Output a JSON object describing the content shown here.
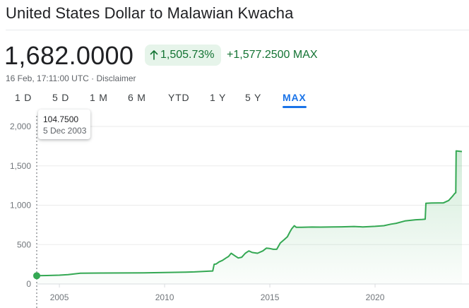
{
  "header": {
    "title": "United States Dollar to Malawian Kwacha"
  },
  "quote": {
    "price": "1,682.0000",
    "change_pct": "1,505.73%",
    "change_abs": "+1,577.2500",
    "change_period": "MAX",
    "timestamp": "16 Feb, 17:11:00 UTC",
    "separator": " · ",
    "disclaimer": "Disclaimer"
  },
  "colors": {
    "line": "#34a853",
    "positive_text": "#137333",
    "badge_bg": "#e6f4ea",
    "accent": "#1a73e8"
  },
  "tabs": [
    {
      "label": "1 D",
      "active": false
    },
    {
      "label": "5 D",
      "active": false
    },
    {
      "label": "1 M",
      "active": false
    },
    {
      "label": "6 M",
      "active": false
    },
    {
      "label": "YTD",
      "active": false
    },
    {
      "label": "1 Y",
      "active": false
    },
    {
      "label": "5 Y",
      "active": false
    },
    {
      "label": "MAX",
      "active": true
    }
  ],
  "tooltip": {
    "value": "104.7500",
    "date": "5 Dec 2003"
  },
  "chart_data": {
    "type": "area",
    "title": "",
    "xlabel": "",
    "ylabel": "",
    "ylim": [
      0,
      2000
    ],
    "xlim": [
      "2003-12-05",
      "2024-02-16"
    ],
    "y_ticks": [
      {
        "value": 0,
        "label": "0"
      },
      {
        "value": 500,
        "label": "500"
      },
      {
        "value": 1000,
        "label": "1,000"
      },
      {
        "value": 1500,
        "label": "1,500"
      },
      {
        "value": 2000,
        "label": "2,000"
      }
    ],
    "x_ticks": [
      {
        "value": "2005-01-01",
        "label": "2005"
      },
      {
        "value": "2010-01-01",
        "label": "2010"
      },
      {
        "value": "2015-01-01",
        "label": "2015"
      },
      {
        "value": "2020-01-01",
        "label": "2020"
      }
    ],
    "grid": "horizontal",
    "highlight_point": {
      "x": "2003-12-05",
      "y": 104.75
    },
    "series": [
      {
        "points": [
          [
            "2003-12-05",
            104.75
          ],
          [
            "2004-06-01",
            108
          ],
          [
            "2005-01-01",
            112
          ],
          [
            "2005-06-01",
            118
          ],
          [
            "2006-01-01",
            136
          ],
          [
            "2007-01-01",
            139
          ],
          [
            "2008-01-01",
            140
          ],
          [
            "2009-01-01",
            141
          ],
          [
            "2010-01-01",
            146
          ],
          [
            "2011-01-01",
            151
          ],
          [
            "2011-06-01",
            153
          ],
          [
            "2012-03-01",
            163
          ],
          [
            "2012-04-15",
            165
          ],
          [
            "2012-05-10",
            250
          ],
          [
            "2012-06-15",
            255
          ],
          [
            "2012-08-01",
            280
          ],
          [
            "2012-10-01",
            300
          ],
          [
            "2012-12-01",
            330
          ],
          [
            "2013-01-15",
            350
          ],
          [
            "2013-03-01",
            390
          ],
          [
            "2013-05-01",
            360
          ],
          [
            "2013-07-01",
            330
          ],
          [
            "2013-09-01",
            340
          ],
          [
            "2013-11-01",
            390
          ],
          [
            "2014-01-01",
            420
          ],
          [
            "2014-03-01",
            400
          ],
          [
            "2014-06-01",
            390
          ],
          [
            "2014-09-01",
            420
          ],
          [
            "2014-11-01",
            455
          ],
          [
            "2015-01-01",
            450
          ],
          [
            "2015-03-01",
            440
          ],
          [
            "2015-05-01",
            440
          ],
          [
            "2015-07-01",
            520
          ],
          [
            "2015-09-01",
            560
          ],
          [
            "2015-11-01",
            600
          ],
          [
            "2015-12-15",
            660
          ],
          [
            "2016-01-15",
            700
          ],
          [
            "2016-03-01",
            740
          ],
          [
            "2016-04-01",
            720
          ],
          [
            "2016-07-01",
            720
          ],
          [
            "2017-01-01",
            723
          ],
          [
            "2017-06-01",
            722
          ],
          [
            "2018-01-01",
            724
          ],
          [
            "2018-06-01",
            726
          ],
          [
            "2019-01-01",
            730
          ],
          [
            "2019-06-01",
            725
          ],
          [
            "2020-01-01",
            732
          ],
          [
            "2020-06-01",
            740
          ],
          [
            "2020-10-01",
            760
          ],
          [
            "2021-01-01",
            770
          ],
          [
            "2021-06-01",
            800
          ],
          [
            "2021-12-01",
            815
          ],
          [
            "2022-04-01",
            820
          ],
          [
            "2022-05-20",
            822
          ],
          [
            "2022-06-01",
            1025
          ],
          [
            "2022-09-01",
            1028
          ],
          [
            "2023-01-01",
            1030
          ],
          [
            "2023-04-01",
            1030
          ],
          [
            "2023-07-01",
            1060
          ],
          [
            "2023-09-01",
            1110
          ],
          [
            "2023-10-15",
            1150
          ],
          [
            "2023-11-01",
            1160
          ],
          [
            "2023-11-08",
            1690
          ],
          [
            "2024-02-16",
            1682
          ]
        ]
      }
    ]
  }
}
